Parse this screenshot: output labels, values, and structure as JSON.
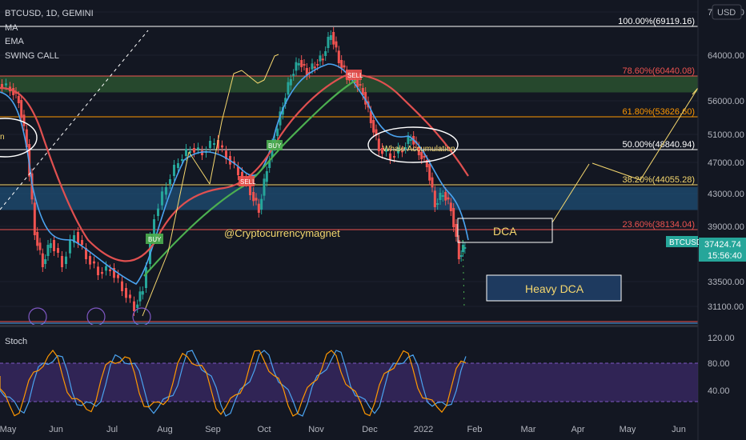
{
  "header": {
    "symbol_line": "BTCUSD, 1D, GEMINI",
    "indicators": [
      "MA",
      "EMA",
      "SWING CALL"
    ],
    "currency_badge": "USD"
  },
  "price_badge": {
    "symbol": "BTCUSD",
    "price": "37424.74",
    "countdown": "15:56:40"
  },
  "oscillator": {
    "title": "Stoch",
    "ticks": [
      "120.00",
      "80.00",
      "40.00"
    ]
  },
  "x_ticks": [
    "May",
    "Jun",
    "Jul",
    "Aug",
    "Sep",
    "Oct",
    "Nov",
    "Dec",
    "2022",
    "Feb",
    "Mar",
    "Apr",
    "May",
    "Jun"
  ],
  "annotations": {
    "watermark": "@Cryptocurrencymagnet",
    "dca": "DCA",
    "heavy_dca": "Heavy DCA",
    "whale": "Whale Accumulation",
    "left_oval": "n",
    "signals": [
      "BUY",
      "BUY",
      "SELL",
      "BUY",
      "SELL"
    ]
  },
  "colors": {
    "background": "#131722",
    "up": "#26a69a",
    "down": "#ef5350",
    "ema_fast": "#4aa3f0",
    "ma_red": "#e05050",
    "ma_green": "#4caf50",
    "accent_yellow": "#f5d76e"
  },
  "chart_data": {
    "type": "candlestick",
    "y_ticks": [
      "72000.00",
      "64000.00",
      "56000.00",
      "51000.00",
      "47000.00",
      "43000.00",
      "39000.00",
      "33500.00",
      "31100.00"
    ],
    "fib_levels": [
      {
        "label": "100.00%(69119.16)",
        "value": 69119.16,
        "color": "#ffffff"
      },
      {
        "label": "78.60%(60440.08)",
        "value": 60440.08,
        "color": "#ef5350"
      },
      {
        "label": "61.80%(53626.60)",
        "value": 53626.6,
        "color": "#ff9800"
      },
      {
        "label": "50.00%(48840.94)",
        "value": 48840.94,
        "color": "#ffffff"
      },
      {
        "label": "38.20%(44055.28)",
        "value": 44055.28,
        "color": "#f5d76e"
      },
      {
        "label": "23.60%(38134.04)",
        "value": 38134.04,
        "color": "#ef5350"
      }
    ],
    "zones": [
      {
        "name": "green-supply-zone",
        "from": 57500,
        "to": 60440,
        "color": "#2e5a32"
      },
      {
        "name": "blue-support-zone",
        "from": 41000,
        "to": 43800,
        "color": "#1f4f75"
      }
    ],
    "last_price": 37424.74
  }
}
